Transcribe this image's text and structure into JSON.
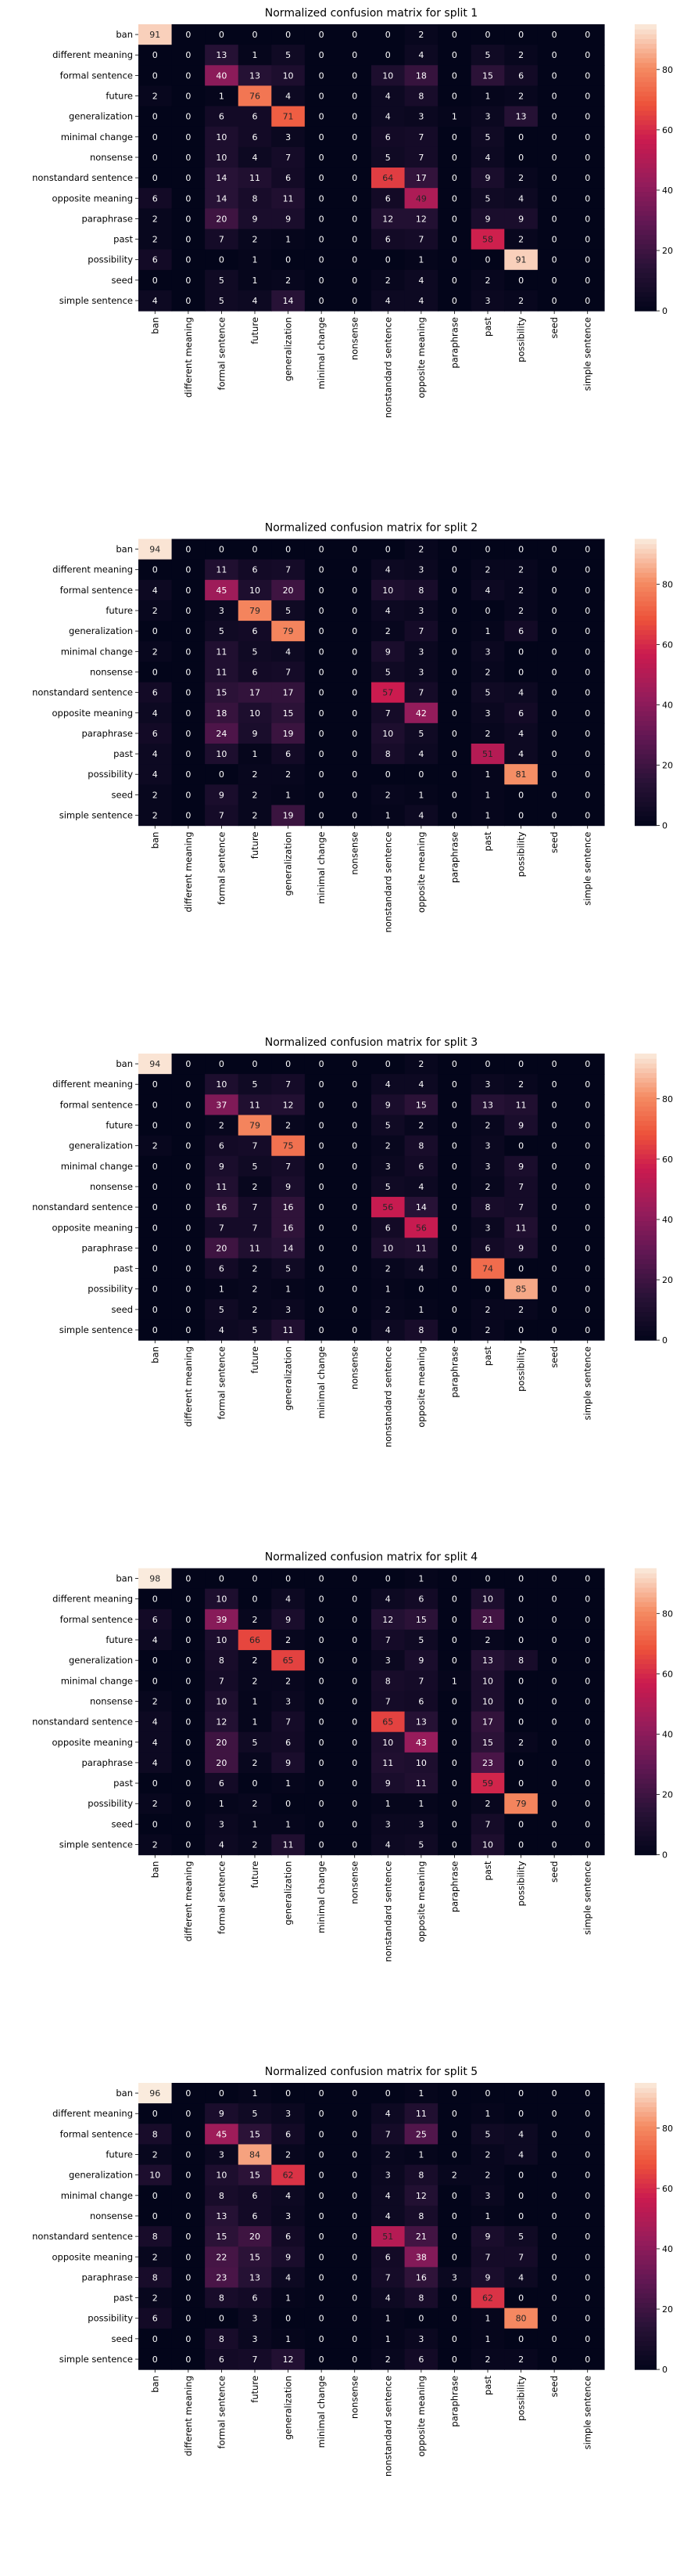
{
  "chart_data": [
    {
      "type": "heatmap",
      "title": "Normalized confusion matrix for split 1",
      "rows": [
        "ban",
        "different meaning",
        "formal sentence",
        "future",
        "generalization",
        "minimal change",
        "nonsense",
        "nonstandard sentence",
        "opposite meaning",
        "paraphrase",
        "past",
        "possibility",
        "seed",
        "simple sentence"
      ],
      "columns": [
        "ban",
        "different meaning",
        "formal sentence",
        "future",
        "generalization",
        "minimal change",
        "nonsense",
        "nonstandard sentence",
        "opposite meaning",
        "paraphrase",
        "past",
        "possibility",
        "seed",
        "simple sentence"
      ],
      "values": [
        [
          91,
          0,
          0,
          0,
          0,
          0,
          0,
          0,
          2,
          0,
          0,
          0,
          0,
          0
        ],
        [
          0,
          0,
          13,
          1,
          5,
          0,
          0,
          0,
          4,
          0,
          5,
          2,
          0,
          0
        ],
        [
          0,
          0,
          40,
          13,
          10,
          0,
          0,
          10,
          18,
          0,
          15,
          6,
          0,
          0
        ],
        [
          2,
          0,
          1,
          76,
          4,
          0,
          0,
          4,
          8,
          0,
          1,
          2,
          0,
          0
        ],
        [
          0,
          0,
          6,
          6,
          71,
          0,
          0,
          4,
          3,
          1,
          3,
          13,
          0,
          0
        ],
        [
          0,
          0,
          10,
          6,
          3,
          0,
          0,
          6,
          7,
          0,
          5,
          0,
          0,
          0
        ],
        [
          0,
          0,
          10,
          4,
          7,
          0,
          0,
          5,
          7,
          0,
          4,
          0,
          0,
          0
        ],
        [
          0,
          0,
          14,
          11,
          6,
          0,
          0,
          64,
          17,
          0,
          9,
          2,
          0,
          0
        ],
        [
          6,
          0,
          14,
          8,
          11,
          0,
          0,
          6,
          49,
          0,
          5,
          4,
          0,
          0
        ],
        [
          2,
          0,
          20,
          9,
          9,
          0,
          0,
          12,
          12,
          0,
          9,
          9,
          0,
          0
        ],
        [
          2,
          0,
          7,
          2,
          1,
          0,
          0,
          6,
          7,
          0,
          58,
          2,
          0,
          0
        ],
        [
          6,
          0,
          0,
          1,
          0,
          0,
          0,
          0,
          1,
          0,
          0,
          91,
          0,
          0
        ],
        [
          0,
          0,
          5,
          1,
          2,
          0,
          0,
          2,
          4,
          0,
          2,
          0,
          0,
          0
        ],
        [
          4,
          0,
          5,
          4,
          14,
          0,
          0,
          4,
          4,
          0,
          3,
          2,
          0,
          0
        ]
      ],
      "colorbar": {
        "min": 0,
        "max": 95,
        "ticks": [
          0,
          20,
          40,
          60,
          80
        ]
      }
    },
    {
      "type": "heatmap",
      "title": "Normalized confusion matrix for split 2",
      "rows": [
        "ban",
        "different meaning",
        "formal sentence",
        "future",
        "generalization",
        "minimal change",
        "nonsense",
        "nonstandard sentence",
        "opposite meaning",
        "paraphrase",
        "past",
        "possibility",
        "seed",
        "simple sentence"
      ],
      "columns": [
        "ban",
        "different meaning",
        "formal sentence",
        "future",
        "generalization",
        "minimal change",
        "nonsense",
        "nonstandard sentence",
        "opposite meaning",
        "paraphrase",
        "past",
        "possibility",
        "seed",
        "simple sentence"
      ],
      "values": [
        [
          94,
          0,
          0,
          0,
          0,
          0,
          0,
          0,
          2,
          0,
          0,
          0,
          0,
          0
        ],
        [
          0,
          0,
          11,
          6,
          7,
          0,
          0,
          4,
          3,
          0,
          2,
          2,
          0,
          0
        ],
        [
          4,
          0,
          45,
          10,
          20,
          0,
          0,
          10,
          8,
          0,
          4,
          2,
          0,
          0
        ],
        [
          2,
          0,
          3,
          79,
          5,
          0,
          0,
          4,
          3,
          0,
          0,
          2,
          0,
          0
        ],
        [
          0,
          0,
          5,
          6,
          79,
          0,
          0,
          2,
          7,
          0,
          1,
          6,
          0,
          0
        ],
        [
          2,
          0,
          11,
          5,
          4,
          0,
          0,
          9,
          3,
          0,
          3,
          0,
          0,
          0
        ],
        [
          0,
          0,
          11,
          6,
          7,
          0,
          0,
          5,
          3,
          0,
          2,
          0,
          0,
          0
        ],
        [
          6,
          0,
          15,
          17,
          17,
          0,
          0,
          57,
          7,
          0,
          5,
          4,
          0,
          0
        ],
        [
          4,
          0,
          18,
          10,
          15,
          0,
          0,
          7,
          42,
          0,
          3,
          6,
          0,
          0
        ],
        [
          6,
          0,
          24,
          9,
          19,
          0,
          0,
          10,
          5,
          0,
          2,
          4,
          0,
          0
        ],
        [
          4,
          0,
          10,
          1,
          6,
          0,
          0,
          8,
          4,
          0,
          51,
          4,
          0,
          0
        ],
        [
          4,
          0,
          0,
          2,
          2,
          0,
          0,
          0,
          0,
          0,
          1,
          81,
          0,
          0
        ],
        [
          2,
          0,
          9,
          2,
          1,
          0,
          0,
          2,
          1,
          0,
          1,
          0,
          0,
          0
        ],
        [
          2,
          0,
          7,
          2,
          19,
          0,
          0,
          1,
          4,
          0,
          1,
          0,
          0,
          0
        ]
      ],
      "colorbar": {
        "min": 0,
        "max": 95,
        "ticks": [
          0,
          20,
          40,
          60,
          80
        ]
      }
    },
    {
      "type": "heatmap",
      "title": "Normalized confusion matrix for split 3",
      "rows": [
        "ban",
        "different meaning",
        "formal sentence",
        "future",
        "generalization",
        "minimal change",
        "nonsense",
        "nonstandard sentence",
        "opposite meaning",
        "paraphrase",
        "past",
        "possibility",
        "seed",
        "simple sentence"
      ],
      "columns": [
        "ban",
        "different meaning",
        "formal sentence",
        "future",
        "generalization",
        "minimal change",
        "nonsense",
        "nonstandard sentence",
        "opposite meaning",
        "paraphrase",
        "past",
        "possibility",
        "seed",
        "simple sentence"
      ],
      "values": [
        [
          94,
          0,
          0,
          0,
          0,
          0,
          0,
          0,
          2,
          0,
          0,
          0,
          0,
          0
        ],
        [
          0,
          0,
          10,
          5,
          7,
          0,
          0,
          4,
          4,
          0,
          3,
          2,
          0,
          0
        ],
        [
          0,
          0,
          37,
          11,
          12,
          0,
          0,
          9,
          15,
          0,
          13,
          11,
          0,
          0
        ],
        [
          0,
          0,
          2,
          79,
          2,
          0,
          0,
          5,
          2,
          0,
          2,
          9,
          0,
          0
        ],
        [
          2,
          0,
          6,
          7,
          75,
          0,
          0,
          2,
          8,
          0,
          3,
          0,
          0,
          0
        ],
        [
          0,
          0,
          9,
          5,
          7,
          0,
          0,
          3,
          6,
          0,
          3,
          9,
          0,
          0
        ],
        [
          0,
          0,
          11,
          2,
          9,
          0,
          0,
          5,
          4,
          0,
          2,
          7,
          0,
          0
        ],
        [
          0,
          0,
          16,
          7,
          16,
          0,
          0,
          56,
          14,
          0,
          8,
          7,
          0,
          0
        ],
        [
          0,
          0,
          7,
          7,
          16,
          0,
          0,
          6,
          56,
          0,
          3,
          11,
          0,
          0
        ],
        [
          0,
          0,
          20,
          11,
          14,
          0,
          0,
          10,
          11,
          0,
          6,
          9,
          0,
          0
        ],
        [
          0,
          0,
          6,
          2,
          5,
          0,
          0,
          2,
          4,
          0,
          74,
          0,
          0,
          0
        ],
        [
          0,
          0,
          1,
          2,
          1,
          0,
          0,
          1,
          0,
          0,
          0,
          85,
          0,
          0
        ],
        [
          0,
          0,
          5,
          2,
          3,
          0,
          0,
          2,
          1,
          0,
          2,
          2,
          0,
          0
        ],
        [
          0,
          0,
          4,
          5,
          11,
          0,
          0,
          4,
          8,
          0,
          2,
          0,
          0,
          0
        ]
      ],
      "colorbar": {
        "min": 0,
        "max": 95,
        "ticks": [
          0,
          20,
          40,
          60,
          80
        ]
      }
    },
    {
      "type": "heatmap",
      "title": "Normalized confusion matrix for split 4",
      "rows": [
        "ban",
        "different meaning",
        "formal sentence",
        "future",
        "generalization",
        "minimal change",
        "nonsense",
        "nonstandard sentence",
        "opposite meaning",
        "paraphrase",
        "past",
        "possibility",
        "seed",
        "simple sentence"
      ],
      "columns": [
        "ban",
        "different meaning",
        "formal sentence",
        "future",
        "generalization",
        "minimal change",
        "nonsense",
        "nonstandard sentence",
        "opposite meaning",
        "paraphrase",
        "past",
        "possibility",
        "seed",
        "simple sentence"
      ],
      "values": [
        [
          98,
          0,
          0,
          0,
          0,
          0,
          0,
          0,
          1,
          0,
          0,
          0,
          0,
          0
        ],
        [
          0,
          0,
          10,
          0,
          4,
          0,
          0,
          4,
          6,
          0,
          10,
          0,
          0,
          0
        ],
        [
          6,
          0,
          39,
          2,
          9,
          0,
          0,
          12,
          15,
          0,
          21,
          0,
          0,
          0
        ],
        [
          4,
          0,
          10,
          66,
          2,
          0,
          0,
          7,
          5,
          0,
          2,
          0,
          0,
          0
        ],
        [
          0,
          0,
          8,
          2,
          65,
          0,
          0,
          3,
          9,
          0,
          13,
          8,
          0,
          0
        ],
        [
          0,
          0,
          7,
          2,
          2,
          0,
          0,
          8,
          7,
          1,
          10,
          0,
          0,
          0
        ],
        [
          2,
          0,
          10,
          1,
          3,
          0,
          0,
          7,
          6,
          0,
          10,
          0,
          0,
          0
        ],
        [
          4,
          0,
          12,
          1,
          7,
          0,
          0,
          65,
          13,
          0,
          17,
          0,
          0,
          0
        ],
        [
          4,
          0,
          20,
          5,
          6,
          0,
          0,
          10,
          43,
          0,
          15,
          2,
          0,
          0
        ],
        [
          4,
          0,
          20,
          2,
          9,
          0,
          0,
          11,
          10,
          0,
          23,
          0,
          0,
          0
        ],
        [
          0,
          0,
          6,
          0,
          1,
          0,
          0,
          9,
          11,
          0,
          59,
          0,
          0,
          0
        ],
        [
          2,
          0,
          1,
          2,
          0,
          0,
          0,
          1,
          1,
          0,
          2,
          79,
          0,
          0
        ],
        [
          0,
          0,
          3,
          1,
          1,
          0,
          0,
          3,
          3,
          0,
          7,
          0,
          0,
          0
        ],
        [
          2,
          0,
          4,
          2,
          11,
          0,
          0,
          4,
          5,
          0,
          10,
          0,
          0,
          0
        ]
      ],
      "colorbar": {
        "min": 0,
        "max": 95,
        "ticks": [
          0,
          20,
          40,
          60,
          80
        ]
      }
    },
    {
      "type": "heatmap",
      "title": "Normalized confusion matrix for split 5",
      "rows": [
        "ban",
        "different meaning",
        "formal sentence",
        "future",
        "generalization",
        "minimal change",
        "nonsense",
        "nonstandard sentence",
        "opposite meaning",
        "paraphrase",
        "past",
        "possibility",
        "seed",
        "simple sentence"
      ],
      "columns": [
        "ban",
        "different meaning",
        "formal sentence",
        "future",
        "generalization",
        "minimal change",
        "nonsense",
        "nonstandard sentence",
        "opposite meaning",
        "paraphrase",
        "past",
        "possibility",
        "seed",
        "simple sentence"
      ],
      "values": [
        [
          96,
          0,
          0,
          1,
          0,
          0,
          0,
          0,
          1,
          0,
          0,
          0,
          0,
          0
        ],
        [
          0,
          0,
          9,
          5,
          3,
          0,
          0,
          4,
          11,
          0,
          1,
          0,
          0,
          0
        ],
        [
          8,
          0,
          45,
          15,
          6,
          0,
          0,
          7,
          25,
          0,
          5,
          4,
          0,
          0
        ],
        [
          2,
          0,
          3,
          84,
          2,
          0,
          0,
          2,
          1,
          0,
          2,
          4,
          0,
          0
        ],
        [
          10,
          0,
          10,
          15,
          62,
          0,
          0,
          3,
          8,
          2,
          2,
          0,
          0,
          0
        ],
        [
          0,
          0,
          8,
          6,
          4,
          0,
          0,
          4,
          12,
          0,
          3,
          0,
          0,
          0
        ],
        [
          0,
          0,
          13,
          6,
          3,
          0,
          0,
          4,
          8,
          0,
          1,
          0,
          0,
          0
        ],
        [
          8,
          0,
          15,
          20,
          6,
          0,
          0,
          51,
          21,
          0,
          9,
          5,
          0,
          0
        ],
        [
          2,
          0,
          22,
          15,
          9,
          0,
          0,
          6,
          38,
          0,
          7,
          7,
          0,
          0
        ],
        [
          8,
          0,
          23,
          13,
          4,
          0,
          0,
          7,
          16,
          3,
          9,
          4,
          0,
          0
        ],
        [
          2,
          0,
          8,
          6,
          1,
          0,
          0,
          4,
          8,
          0,
          62,
          0,
          0,
          0
        ],
        [
          6,
          0,
          0,
          3,
          0,
          0,
          0,
          1,
          0,
          0,
          1,
          80,
          0,
          0
        ],
        [
          0,
          0,
          8,
          3,
          1,
          0,
          0,
          1,
          3,
          0,
          1,
          0,
          0,
          0
        ],
        [
          0,
          0,
          6,
          7,
          12,
          0,
          0,
          2,
          6,
          0,
          2,
          2,
          0,
          0
        ]
      ],
      "colorbar": {
        "min": 0,
        "max": 95,
        "ticks": [
          0,
          20,
          40,
          60,
          80
        ]
      }
    }
  ]
}
